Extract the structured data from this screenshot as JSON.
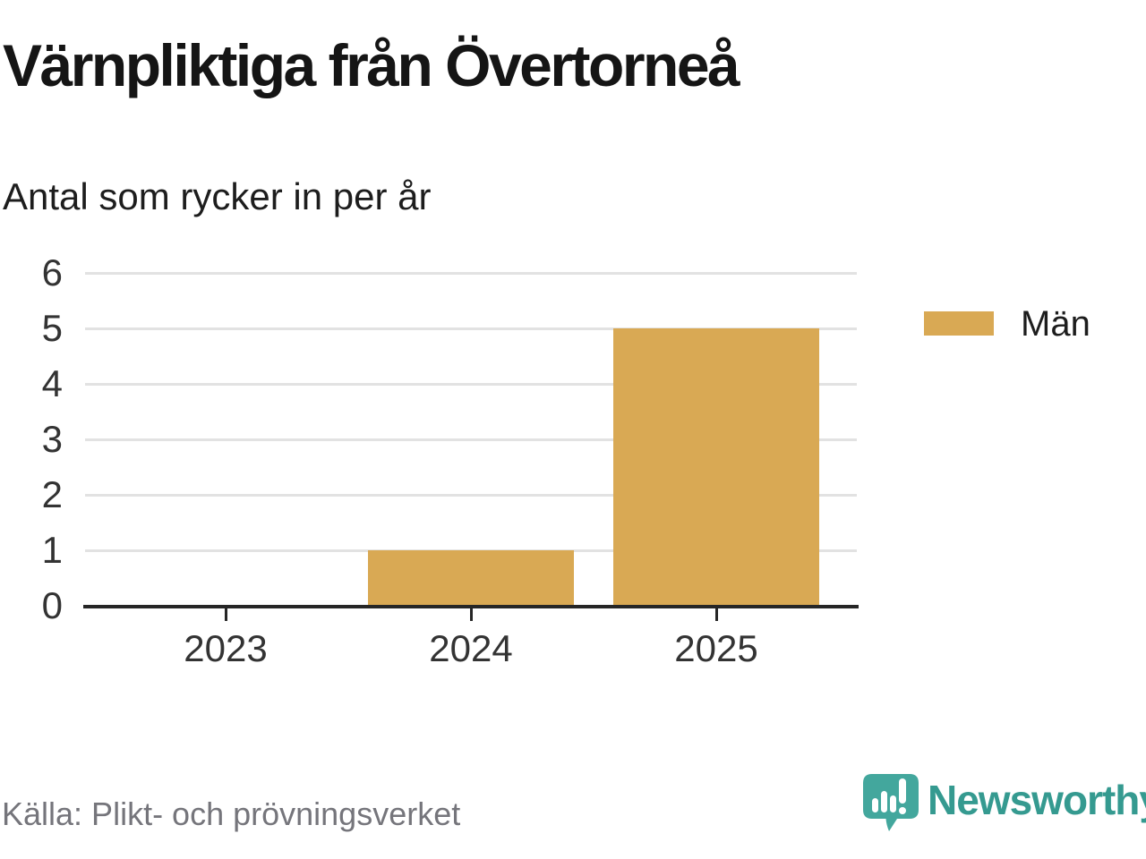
{
  "title": "Värnpliktiga från Övertorneå",
  "subtitle": "Antal som rycker in per år",
  "source": "Källa: Plikt- och prövningsverket",
  "brand": {
    "name": "Newsworthy",
    "icon": "newsworthy-speech-bubble-chart-icon",
    "wordmark_color": "#359a90",
    "icon_color": "#43a79d"
  },
  "legend": [
    {
      "label": "Män",
      "color": "#d9a954"
    }
  ],
  "chart_data": {
    "type": "bar",
    "title": "Värnpliktiga från Övertorneå",
    "subtitle": "Antal som rycker in per år",
    "categories": [
      "2023",
      "2024",
      "2025"
    ],
    "series": [
      {
        "name": "Män",
        "values": [
          0,
          1,
          5
        ]
      }
    ],
    "xlabel": "",
    "ylabel": "Antal som rycker in per år",
    "ylim": [
      0,
      6
    ],
    "yticks": [
      0,
      1,
      2,
      3,
      4,
      5,
      6
    ],
    "grid": true,
    "legend_position": "right",
    "bar_color": "#d9a954",
    "gridline_color": "#e2e2e2",
    "axis_color": "#262626",
    "tick_label_color": "#333333"
  }
}
